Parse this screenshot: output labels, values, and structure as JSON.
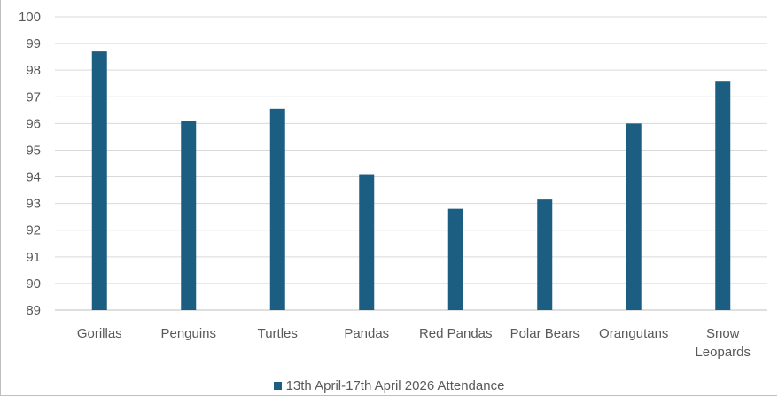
{
  "chart_data": {
    "type": "bar",
    "categories": [
      "Gorillas",
      "Penguins",
      "Turtles",
      "Pandas",
      "Red Pandas",
      "Polar Bears",
      "Orangutans",
      "Snow Leopards"
    ],
    "category_lines": [
      [
        "Gorillas"
      ],
      [
        "Penguins"
      ],
      [
        "Turtles"
      ],
      [
        "Pandas"
      ],
      [
        "Red Pandas"
      ],
      [
        "Polar Bears"
      ],
      [
        "Orangutans"
      ],
      [
        "Snow",
        "Leopards"
      ]
    ],
    "series": [
      {
        "name": "13th April-17th April 2026 Attendance",
        "color": "#1b5e82",
        "values": [
          98.7,
          96.1,
          96.55,
          94.1,
          92.8,
          93.15,
          96.0,
          97.6
        ]
      }
    ],
    "ylim": [
      89,
      100
    ],
    "yticks": [
      89,
      90,
      91,
      92,
      93,
      94,
      95,
      96,
      97,
      98,
      99,
      100
    ],
    "grid": true,
    "legend_position": "bottom",
    "title": "",
    "xlabel": "",
    "ylabel": ""
  }
}
